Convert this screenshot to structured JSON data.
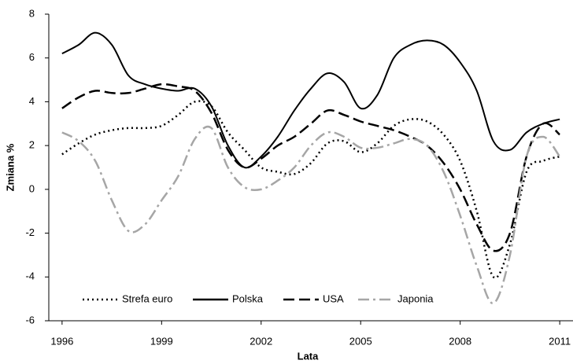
{
  "chart_data": {
    "type": "line",
    "x_label": "Lata",
    "y_label": "Zmiana %",
    "x": [
      1996,
      1996.5,
      1997,
      1997.5,
      1998,
      1998.5,
      1999,
      1999.5,
      2000,
      2000.5,
      2001,
      2001.5,
      2002,
      2002.5,
      2003,
      2003.5,
      2004,
      2004.5,
      2005,
      2005.5,
      2006,
      2006.5,
      2007,
      2007.5,
      2008,
      2008.5,
      2009,
      2009.5,
      2010,
      2010.5,
      2011
    ],
    "series": [
      {
        "name": "Strefa euro",
        "color": "#000000",
        "dash": "dot",
        "values": [
          1.6,
          2.1,
          2.5,
          2.7,
          2.8,
          2.8,
          2.9,
          3.4,
          4.0,
          3.8,
          2.6,
          1.8,
          1.0,
          0.8,
          0.7,
          1.2,
          2.1,
          2.2,
          1.7,
          2.1,
          2.9,
          3.2,
          3.1,
          2.5,
          1.3,
          -1.0,
          -4.0,
          -2.5,
          0.8,
          1.3,
          1.5
        ]
      },
      {
        "name": "Polska",
        "color": "#000000",
        "dash": "solid",
        "values": [
          6.2,
          6.6,
          7.15,
          6.6,
          5.2,
          4.8,
          4.6,
          4.5,
          4.6,
          3.8,
          2.0,
          1.0,
          1.5,
          2.4,
          3.6,
          4.6,
          5.3,
          4.9,
          3.7,
          4.3,
          6.0,
          6.6,
          6.8,
          6.6,
          5.8,
          4.5,
          2.2,
          1.8,
          2.6,
          3.0,
          3.2
        ]
      },
      {
        "name": "USA",
        "color": "#000000",
        "dash": "dash",
        "values": [
          3.7,
          4.2,
          4.5,
          4.4,
          4.4,
          4.6,
          4.8,
          4.7,
          4.5,
          3.5,
          1.8,
          1.0,
          1.4,
          2.0,
          2.4,
          3.0,
          3.6,
          3.4,
          3.1,
          2.9,
          2.7,
          2.4,
          2.0,
          1.2,
          0.0,
          -1.6,
          -2.8,
          -2.0,
          1.5,
          3.0,
          2.5
        ]
      },
      {
        "name": "Japonia",
        "color": "#a6a6a6",
        "dash": "dashdot",
        "values": [
          2.6,
          2.2,
          1.3,
          -0.5,
          -1.9,
          -1.6,
          -0.5,
          0.6,
          2.3,
          2.8,
          1.0,
          0.1,
          0.0,
          0.4,
          1.0,
          2.0,
          2.6,
          2.4,
          1.9,
          1.9,
          2.1,
          2.3,
          2.0,
          0.8,
          -1.2,
          -3.5,
          -5.2,
          -3.0,
          1.5,
          2.4,
          1.5
        ]
      }
    ],
    "xlim": [
      1995.6,
      2011.4
    ],
    "xticks": [
      1996,
      1999,
      2002,
      2005,
      2008,
      2011
    ],
    "ylim": [
      -6,
      8
    ],
    "yticks": [
      -6,
      -4,
      -2,
      0,
      2,
      4,
      6,
      8
    ],
    "legend": "bottom-left",
    "grid": false
  }
}
